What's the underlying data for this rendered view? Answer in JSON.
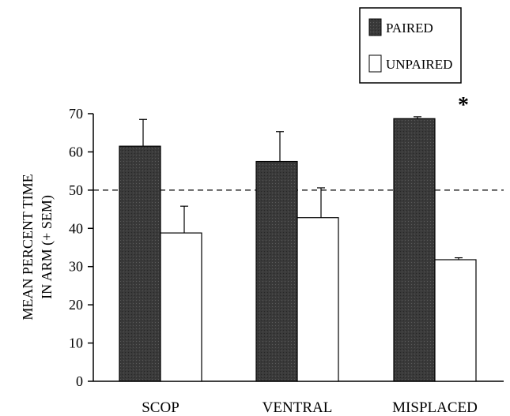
{
  "chart_data": {
    "type": "bar",
    "title": "",
    "xlabel": "",
    "ylabel_line1": "MEAN PERCENT TIME",
    "ylabel_line2": "IN ARM (+ SEM)",
    "categories": [
      "SCOP",
      "VENTRAL",
      "MISPLACED"
    ],
    "series": [
      {
        "name": "PAIRED",
        "values": [
          61.5,
          57.5,
          68.7
        ],
        "errors": [
          7.0,
          7.8,
          0.5
        ],
        "color": "#3a3a3a"
      },
      {
        "name": "UNPAIRED",
        "values": [
          38.8,
          42.8,
          31.8
        ],
        "errors": [
          7.0,
          7.8,
          0.5
        ],
        "color": "#ffffff"
      }
    ],
    "ylim": [
      0,
      70
    ],
    "yticks": [
      0,
      10,
      20,
      30,
      40,
      50,
      60,
      70
    ],
    "reference_line": 50,
    "annotations": [
      {
        "text": "*",
        "category": "MISPLACED"
      }
    ],
    "legend": "top-right",
    "grid": false
  }
}
